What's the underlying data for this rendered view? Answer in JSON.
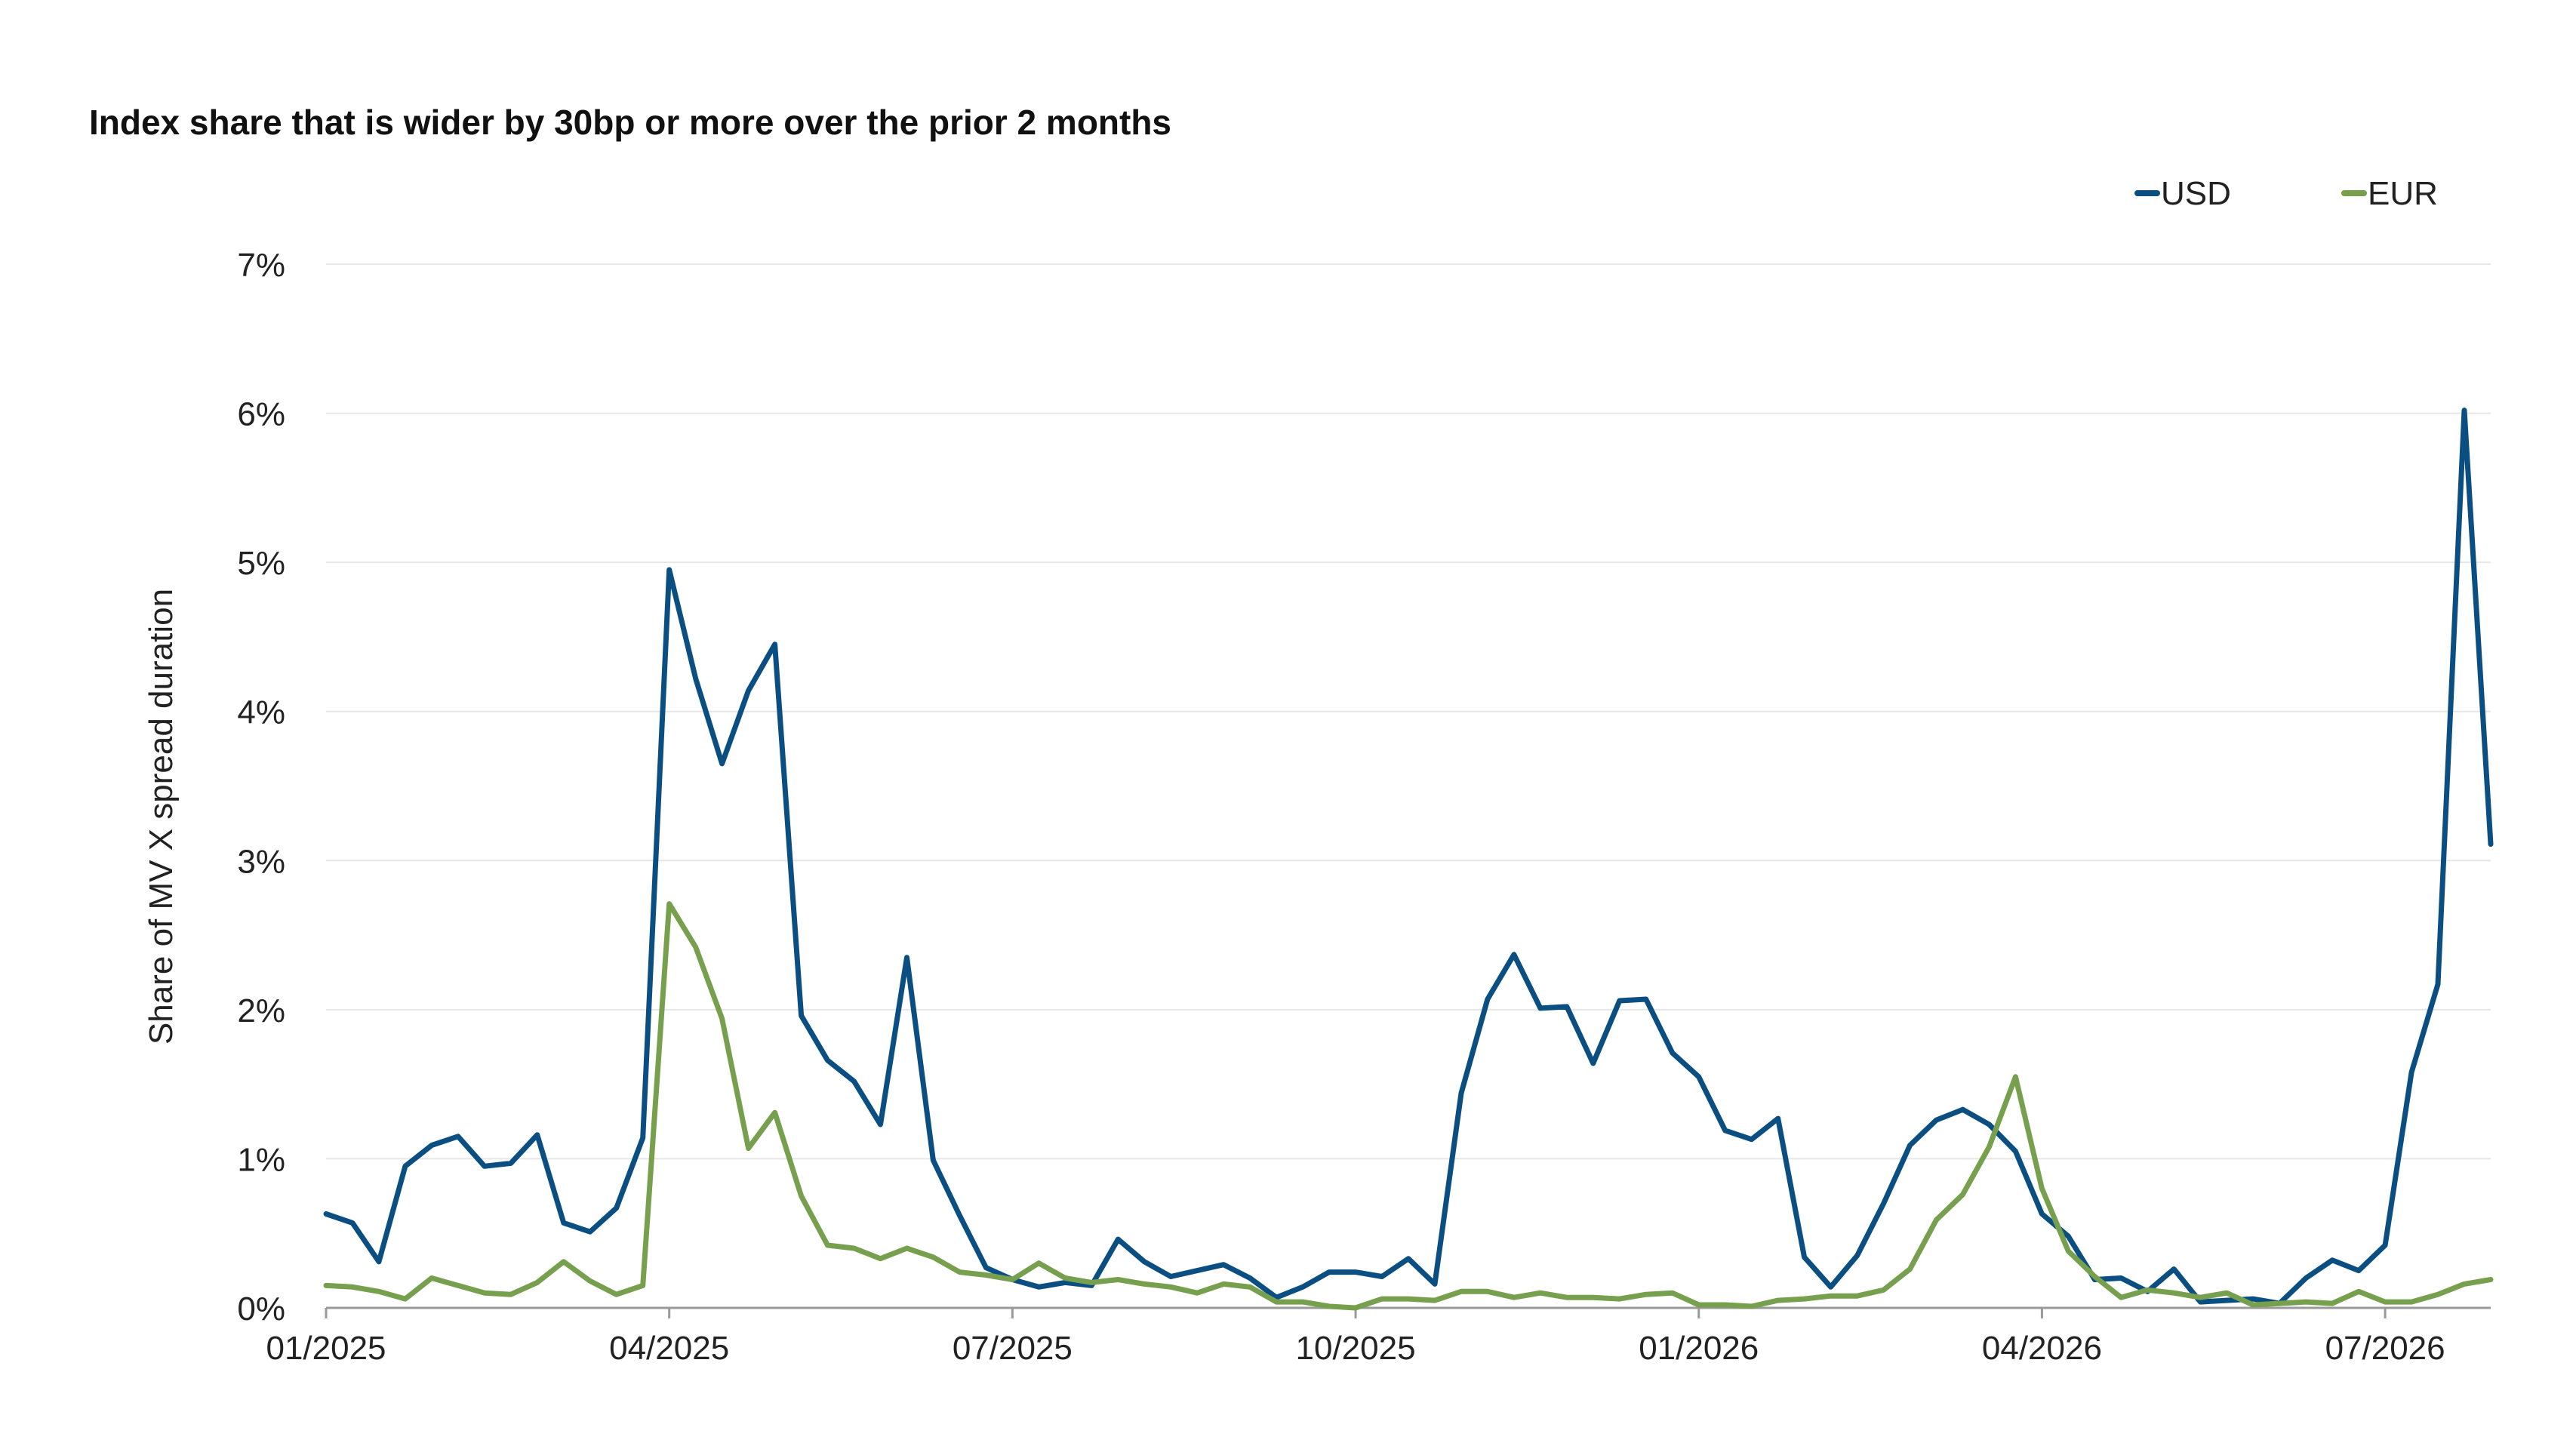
{
  "chart_data": {
    "type": "line",
    "title": "Index share that is wider by 30bp or more over the prior 2 months",
    "xlabel": "",
    "ylabel": "Share of MV X spread duration",
    "ylim": [
      0,
      7
    ],
    "yticks": [
      "0%",
      "1%",
      "2%",
      "3%",
      "4%",
      "5%",
      "6%",
      "7%"
    ],
    "x_tick_labels": [
      "01/2025",
      "04/2025",
      "07/2025",
      "10/2025",
      "01/2026",
      "04/2026",
      "07/2026"
    ],
    "x_tick_index": [
      0,
      13,
      26,
      39,
      52,
      65,
      78
    ],
    "x_count": 83,
    "grid": true,
    "legend_position": "top-right",
    "series": [
      {
        "name": "USD",
        "color": "#0b4f82",
        "values": [
          0.63,
          0.57,
          0.31,
          0.95,
          1.09,
          1.15,
          0.95,
          0.97,
          1.16,
          0.57,
          0.51,
          0.67,
          1.14,
          4.95,
          4.22,
          3.65,
          4.14,
          4.45,
          1.96,
          1.66,
          1.52,
          1.23,
          2.35,
          0.99,
          0.62,
          0.27,
          0.19,
          0.14,
          0.17,
          0.15,
          0.46,
          0.31,
          0.21,
          0.25,
          0.29,
          0.2,
          0.07,
          0.14,
          0.24,
          0.24,
          0.21,
          0.33,
          0.16,
          1.44,
          2.07,
          2.37,
          2.01,
          2.02,
          1.64,
          2.06,
          2.07,
          1.71,
          1.55,
          1.19,
          1.13,
          1.27,
          0.34,
          0.14,
          0.35,
          0.7,
          1.09,
          1.26,
          1.33,
          1.23,
          1.05,
          0.63,
          0.48,
          0.19,
          0.2,
          0.11,
          0.26,
          0.04,
          0.05,
          0.06,
          0.03,
          0.2,
          0.32,
          0.25,
          0.42,
          1.58,
          2.17,
          6.02,
          3.11
        ]
      },
      {
        "name": "EUR",
        "color": "#77a04e",
        "values": [
          0.15,
          0.14,
          0.11,
          0.06,
          0.2,
          0.15,
          0.1,
          0.09,
          0.17,
          0.31,
          0.18,
          0.09,
          0.15,
          2.71,
          2.42,
          1.94,
          1.07,
          1.31,
          0.75,
          0.42,
          0.4,
          0.33,
          0.4,
          0.34,
          0.24,
          0.22,
          0.19,
          0.3,
          0.2,
          0.17,
          0.19,
          0.16,
          0.14,
          0.1,
          0.16,
          0.14,
          0.04,
          0.04,
          0.01,
          0.0,
          0.06,
          0.06,
          0.05,
          0.11,
          0.11,
          0.07,
          0.1,
          0.07,
          0.07,
          0.06,
          0.09,
          0.1,
          0.02,
          0.02,
          0.01,
          0.05,
          0.06,
          0.08,
          0.08,
          0.12,
          0.26,
          0.59,
          0.76,
          1.08,
          1.55,
          0.8,
          0.38,
          0.21,
          0.07,
          0.12,
          0.1,
          0.07,
          0.1,
          0.02,
          0.03,
          0.04,
          0.03,
          0.11,
          0.04,
          0.04,
          0.09,
          0.16,
          0.19
        ]
      }
    ]
  }
}
